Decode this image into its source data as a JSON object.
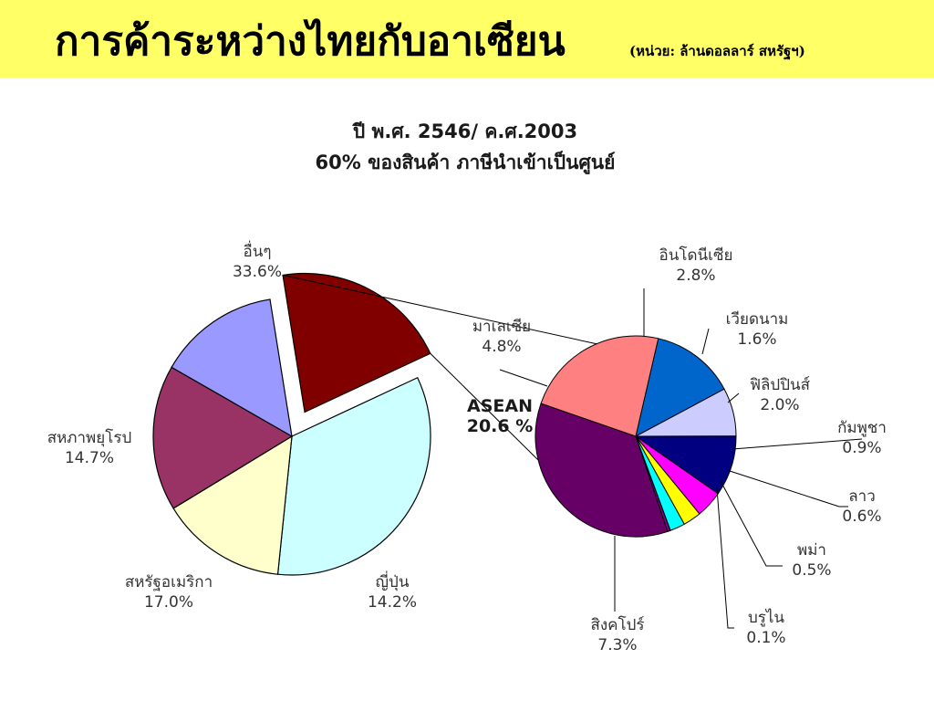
{
  "slide": {
    "title": "การค้าระหว่างไทยกับอาเซียน",
    "subtitle": "(หน่วย: ล้านดอลลาร์ สหรัฐฯ)",
    "band_color": "#ffff66"
  },
  "chart_data": [
    {
      "type": "pie",
      "title": "ปี พ.ศ. 2546/ ค.ศ.2003",
      "subtitle": "60% ของสินค้า ภาษีนำเข้าเป็นศูนย์",
      "slices": [
        {
          "label": "อื่นๆ",
          "value_text": "33.6%",
          "value": 33.6,
          "color": "#ccffff"
        },
        {
          "label": "สหภาพยุโรป",
          "value_text": "14.7%",
          "value": 14.7,
          "color": "#ffffcc"
        },
        {
          "label": "สหรัฐอเมริกา",
          "value_text": "17.0%",
          "value": 17.0,
          "color": "#993366"
        },
        {
          "label": "ญี่ปุ่น",
          "value_text": "14.2%",
          "value": 14.2,
          "color": "#9999ff"
        },
        {
          "label": "ASEAN",
          "value_text": "20.6 %",
          "value": 20.6,
          "color": "#800000",
          "exploded": true
        }
      ]
    },
    {
      "type": "pie",
      "title": "",
      "slices": [
        {
          "label": "อินโดนีเซีย",
          "value_text": "2.8%",
          "value": 2.8,
          "color": "#0066cc"
        },
        {
          "label": "เวียดนาม",
          "value_text": "1.6%",
          "value": 1.6,
          "color": "#ccccff"
        },
        {
          "label": "ฟิลิปปินส์",
          "value_text": "2.0%",
          "value": 2.0,
          "color": "#000080"
        },
        {
          "label": "กัมพูชา",
          "value_text": "0.9%",
          "value": 0.9,
          "color": "#ff00ff"
        },
        {
          "label": "ลาว",
          "value_text": "0.6%",
          "value": 0.6,
          "color": "#ffff00"
        },
        {
          "label": "พม่า",
          "value_text": "0.5%",
          "value": 0.5,
          "color": "#00ffff"
        },
        {
          "label": "บรูไน",
          "value_text": "0.1%",
          "value": 0.1,
          "color": "#800080"
        },
        {
          "label": "สิงคโปร์",
          "value_text": "7.3%",
          "value": 7.3,
          "color": "#660066"
        },
        {
          "label": "มาเลเซีย",
          "value_text": "4.8%",
          "value": 4.8,
          "color": "#ff8080"
        }
      ]
    }
  ]
}
